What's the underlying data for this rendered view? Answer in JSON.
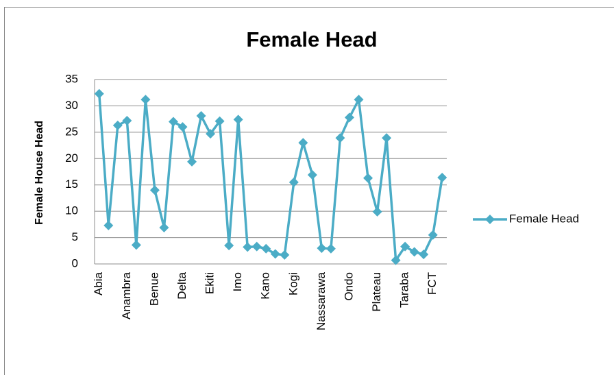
{
  "chart_data": {
    "type": "line",
    "title": "Female Head",
    "y_label": "Female House Head",
    "categories": [
      "Abia",
      null,
      null,
      "Anambra",
      null,
      null,
      "Benue",
      null,
      null,
      "Delta",
      null,
      null,
      "Ekiti",
      null,
      null,
      "Imo",
      null,
      null,
      "Kano",
      null,
      null,
      "Kogi",
      null,
      null,
      "Nassarawa",
      null,
      null,
      "Ondo",
      null,
      null,
      "Plateau",
      null,
      null,
      "Taraba",
      null,
      null,
      "FCT",
      null
    ],
    "series": [
      {
        "name": "Female Head",
        "color": "#4bacc6",
        "values": [
          32.3,
          7.3,
          26.3,
          27.2,
          3.6,
          31.2,
          14,
          6.9,
          27,
          26,
          19.4,
          28.1,
          24.7,
          27.1,
          3.5,
          27.4,
          3.2,
          3.3,
          2.9,
          1.9,
          1.7,
          15.5,
          23,
          16.9,
          3,
          2.9,
          23.9,
          27.8,
          31.2,
          16.3,
          9.9,
          23.9,
          0.7,
          3.3,
          2.3,
          1.8,
          5.5,
          16.4
        ]
      }
    ],
    "ylim": [
      0,
      35
    ],
    "yticks": [
      0,
      5,
      10,
      15,
      20,
      25,
      30,
      35
    ],
    "grid": true,
    "legend": "right"
  }
}
